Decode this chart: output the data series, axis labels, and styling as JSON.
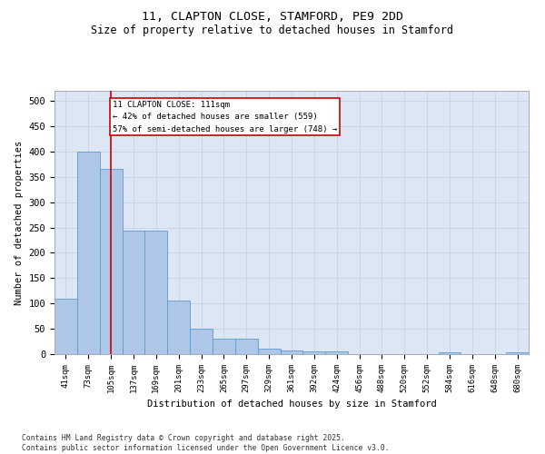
{
  "title_line1": "11, CLAPTON CLOSE, STAMFORD, PE9 2DD",
  "title_line2": "Size of property relative to detached houses in Stamford",
  "xlabel": "Distribution of detached houses by size in Stamford",
  "ylabel": "Number of detached properties",
  "categories": [
    "41sqm",
    "73sqm",
    "105sqm",
    "137sqm",
    "169sqm",
    "201sqm",
    "233sqm",
    "265sqm",
    "297sqm",
    "329sqm",
    "361sqm",
    "392sqm",
    "424sqm",
    "456sqm",
    "488sqm",
    "520sqm",
    "552sqm",
    "584sqm",
    "616sqm",
    "648sqm",
    "680sqm"
  ],
  "values": [
    110,
    400,
    365,
    243,
    243,
    105,
    50,
    30,
    30,
    10,
    8,
    5,
    5,
    0,
    0,
    0,
    0,
    3,
    0,
    0,
    3
  ],
  "bar_color": "#aec6e8",
  "bar_edge_color": "#5b9bd5",
  "grid_color": "#c8d4e8",
  "background_color": "#dce6f5",
  "red_line_x": 2,
  "red_line_color": "#cc0000",
  "annotation_text": "11 CLAPTON CLOSE: 111sqm\n← 42% of detached houses are smaller (559)\n57% of semi-detached houses are larger (748) →",
  "annotation_box_color": "#ffffff",
  "annotation_box_edge": "#cc0000",
  "footnote": "Contains HM Land Registry data © Crown copyright and database right 2025.\nContains public sector information licensed under the Open Government Licence v3.0.",
  "ylim": [
    0,
    520
  ],
  "yticks": [
    0,
    50,
    100,
    150,
    200,
    250,
    300,
    350,
    400,
    450,
    500
  ]
}
